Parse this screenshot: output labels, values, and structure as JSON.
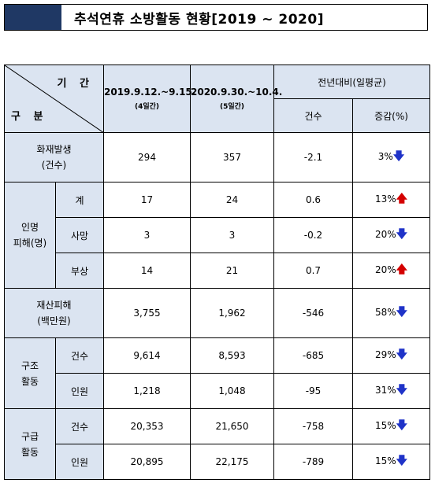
{
  "title": "추석연휴 소방활동 현황[2019 ~ 2020]",
  "header": {
    "period_label": "기 간",
    "category_label": "구 분",
    "col1": {
      "label": "2019.9.12.~9.15.",
      "sub": "(4일간)"
    },
    "col2": {
      "label": "2020.9.30.~10.4.",
      "sub": "(5일간)"
    },
    "compare_label": "전년대비(일평균)",
    "count_label": "건수",
    "change_label": "증감(%)"
  },
  "rows": {
    "fire": {
      "label1": "화재발생",
      "label2": "(건수)",
      "y2019": "294",
      "y2020": "357",
      "count": "-2.1",
      "pct": "3%",
      "dir": "down"
    },
    "casualty_group": {
      "label1": "인명",
      "label2": "피해(명)"
    },
    "casualty_total": {
      "label": "계",
      "y2019": "17",
      "y2020": "24",
      "count": "0.6",
      "pct": "13%",
      "dir": "up"
    },
    "casualty_death": {
      "label": "사망",
      "y2019": "3",
      "y2020": "3",
      "count": "-0.2",
      "pct": "20%",
      "dir": "down"
    },
    "casualty_injury": {
      "label": "부상",
      "y2019": "14",
      "y2020": "21",
      "count": "0.7",
      "pct": "20%",
      "dir": "up"
    },
    "property": {
      "label1": "재산피해",
      "label2": "(백만원)",
      "y2019": "3,755",
      "y2020": "1,962",
      "count": "-546",
      "pct": "58%",
      "dir": "down"
    },
    "rescue_group": {
      "label1": "구조",
      "label2": "활동"
    },
    "rescue_cases": {
      "label": "건수",
      "y2019": "9,614",
      "y2020": "8,593",
      "count": "-685",
      "pct": "29%",
      "dir": "down"
    },
    "rescue_people": {
      "label": "인원",
      "y2019": "1,218",
      "y2020": "1,048",
      "count": "-95",
      "pct": "31%",
      "dir": "down"
    },
    "ems_group": {
      "label1": "구급",
      "label2": "활동"
    },
    "ems_cases": {
      "label": "건수",
      "y2019": "20,353",
      "y2020": "21,650",
      "count": "-758",
      "pct": "15%",
      "dir": "down"
    },
    "ems_people": {
      "label": "인원",
      "y2019": "20,895",
      "y2020": "22,175",
      "count": "-789",
      "pct": "15%",
      "dir": "down"
    }
  },
  "arrows": {
    "down": "🡇",
    "up": "🡅"
  },
  "colors": {
    "header_bg": "#dbe4f1",
    "title_block": "#1f3864",
    "down_arrow": "#1f33c8",
    "up_arrow": "#d40000"
  }
}
